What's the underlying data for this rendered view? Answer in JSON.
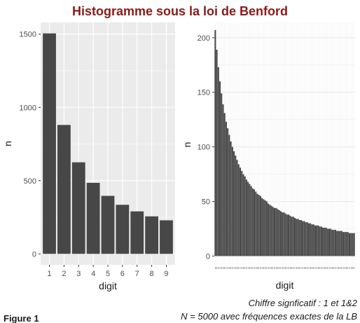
{
  "title": "Histogramme sous la loi de Benford",
  "colors": {
    "title": "#8b1a1a",
    "bar": "#474747",
    "panel_bg": "#ebebeb",
    "grid": "#ffffff"
  },
  "figure_label": "Figure 1",
  "caption": {
    "line1": "Chiffre signficatif : 1 et 1&2",
    "line2": "N = 5000 avec fréquences exactes de la LB"
  },
  "chart_data": [
    {
      "type": "bar",
      "xlabel": "digit",
      "ylabel": "n",
      "categories": [
        "1",
        "2",
        "3",
        "4",
        "5",
        "6",
        "7",
        "8",
        "9"
      ],
      "values": [
        1505,
        880,
        625,
        485,
        396,
        335,
        290,
        256,
        229
      ],
      "yticks": [
        0,
        500,
        1000,
        1500
      ],
      "ylim": [
        -75,
        1580
      ],
      "background": "grey",
      "grid": true
    },
    {
      "type": "bar",
      "xlabel": "digit",
      "ylabel": "n",
      "categories": [
        "10",
        "11",
        "12",
        "13",
        "14",
        "15",
        "16",
        "17",
        "18",
        "19",
        "20",
        "21",
        "22",
        "23",
        "24",
        "25",
        "26",
        "27",
        "28",
        "29",
        "30",
        "31",
        "32",
        "33",
        "34",
        "35",
        "36",
        "37",
        "38",
        "39",
        "40",
        "41",
        "42",
        "43",
        "44",
        "45",
        "46",
        "47",
        "48",
        "49",
        "50",
        "51",
        "52",
        "53",
        "54",
        "55",
        "56",
        "57",
        "58",
        "59",
        "60",
        "61",
        "62",
        "63",
        "64",
        "65",
        "66",
        "67",
        "68",
        "69",
        "70",
        "71",
        "72",
        "73",
        "74",
        "75",
        "76",
        "77",
        "78",
        "79",
        "80",
        "81",
        "82",
        "83",
        "84",
        "85",
        "86",
        "87",
        "88",
        "89",
        "90",
        "91",
        "92",
        "93",
        "94",
        "95",
        "96",
        "97",
        "98",
        "99"
      ],
      "values": [
        207,
        189,
        173,
        160,
        149,
        139,
        131,
        123,
        117,
        111,
        105,
        100,
        96,
        92,
        88,
        84,
        81,
        78,
        75,
        73,
        70,
        68,
        66,
        64,
        62,
        61,
        59,
        57,
        56,
        55,
        53,
        52,
        51,
        50,
        48,
        47,
        46,
        45,
        44,
        44,
        43,
        42,
        41,
        40,
        40,
        39,
        38,
        38,
        37,
        36,
        36,
        35,
        34,
        34,
        33,
        33,
        32,
        32,
        31,
        31,
        30,
        30,
        29,
        29,
        28,
        28,
        28,
        27,
        27,
        26,
        26,
        26,
        25,
        25,
        25,
        24,
        24,
        24,
        23,
        23,
        23,
        23,
        22,
        22,
        22,
        22,
        21,
        21,
        21,
        21
      ],
      "yticks": [
        0,
        50,
        100,
        150,
        200
      ],
      "ylim": [
        -10,
        214
      ],
      "background": "white",
      "grid": true
    }
  ]
}
